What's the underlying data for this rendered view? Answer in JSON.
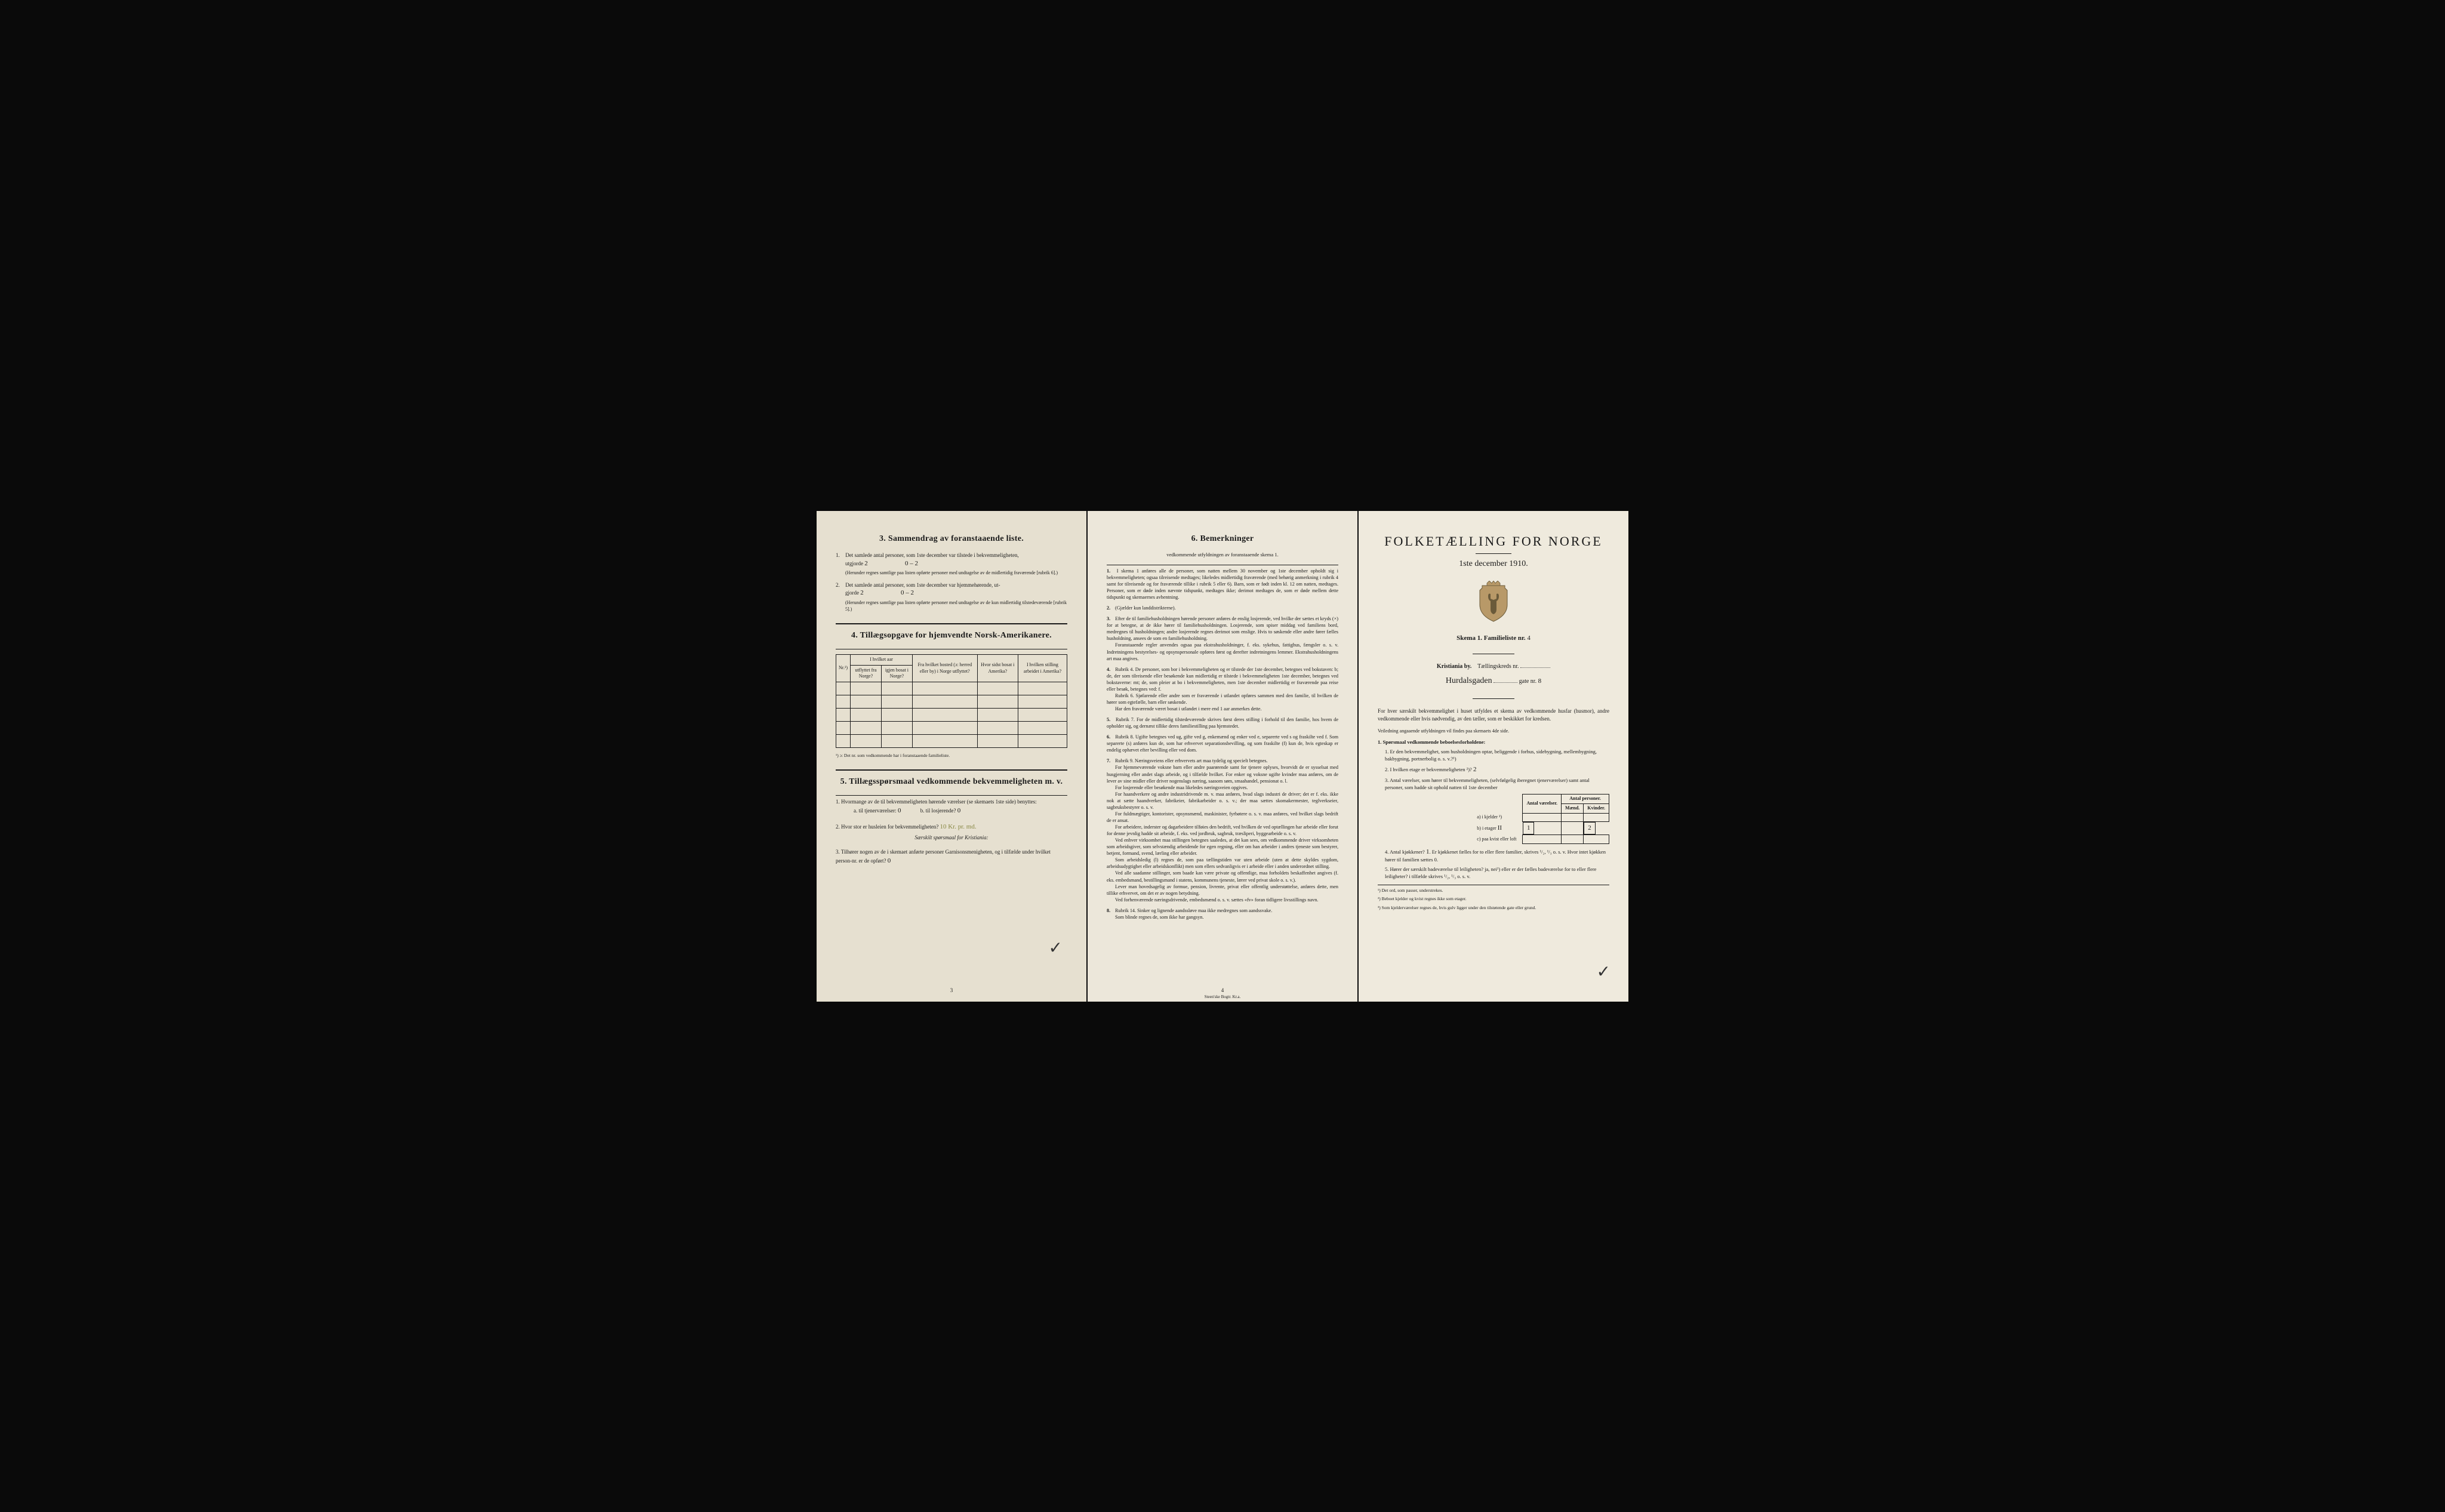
{
  "page_left": {
    "section3": {
      "title": "3.   Sammendrag av foranstaaende liste.",
      "items": [
        {
          "n": "1.",
          "text": "Det samlede antal personer, som 1ste december var tilstede i bekvemmeligheten,",
          "line2": "utgjorde",
          "fill1": "2",
          "fill2": "0 – 2",
          "note": "(Herunder regnes samtlige paa listen opførte personer med undtagelse av de midlertidig fraværende [rubrik 6].)"
        },
        {
          "n": "2.",
          "text": "Det samlede antal personer, som 1ste december var hjemmehørende, ut-",
          "line2": "gjorde",
          "fill1": "2",
          "fill2": "0 – 2",
          "note": "(Herunder regnes samtlige paa listen opførte personer med undtagelse av de kun midlertidig tilstedeværende [rubrik 5].)"
        }
      ]
    },
    "section4": {
      "title": "4.   Tillægsopgave for hjemvendte Norsk-Amerikanere.",
      "headers": {
        "nr": "Nr.¹)",
        "aar": "I hvilket aar",
        "utflyttet": "utflyttet fra Norge?",
        "igjen": "igjen bosat i Norge?",
        "bosted": "Fra hvilket bosted (ɔ: herred eller by) i Norge utflyttet?",
        "sidst": "Hvor sidst bosat i Amerika?",
        "stilling": "I hvilken stilling arbeidet i Amerika?"
      },
      "footnote": "¹) ɔ: Det nr. som vedkommende har i foranstaaende familieliste."
    },
    "section5": {
      "title": "5.   Tillægsspørsmaal vedkommende bekvemmeligheten m. v.",
      "q1": "1. Hvormange av de til bekvemmeligheten hørende værelser (se skemaets 1ste side) benyttes:",
      "q1a": "a. til tjenerværelser:",
      "q1a_fill": "0",
      "q1b": "b. til losjerende?",
      "q1b_fill": "0",
      "q2": "2. Hvor stor er husleien for bekvemmeligheten?",
      "q2_fill": "10 Kr. pr. md.",
      "q2_note": "Særskilt spørsmaal for Kristiania:",
      "q3": "3. Tilhører nogen av de i skemaet anførte personer Garnisonsmenigheten, og i tilfælde under hvilket person-nr. er de opført?",
      "q3_fill": "0"
    },
    "page_num": "3"
  },
  "page_mid": {
    "title": "6.   Bemerkninger",
    "subtitle": "vedkommende utfyldningen av foranstaaende skema 1.",
    "items": [
      "I skema 1 anføres alle de personer, som natten mellem 30 november og 1ste december opholdt sig i bekvemmeligheten; ogsaa tilreisende medtages; likeledes midlertidig fraværende (med behørig anmerkning i rubrik 4 samt for tilreisende og for fraværende tillike i rubrik 5 eller 6). Barn, som er født inden kl. 12 om natten, medtages. Personer, som er døde inden nævnte tidspunkt, medtages ikke; derimot medtages de, som er døde mellem dette tidspunkt og skemaernes avhentning.",
      "(Gjælder kun landdistrikterne).",
      "Efter de til familiehusholdningen hørende personer anføres de enslig losjerende, ved hvilke der sættes et kryds (×) for at betegne, at de ikke hører til familiehusholdningen. Losjerende, som spiser middag ved familiens bord, medregnes til husholdningen; andre losjerende regnes derimot som enslige. Hvis to søskende eller andre fører fælles husholdning, ansees de som en familiehusholdning.\n    Foranstaaende regler anvendes ogsaa paa ekstrahusholdninger, f. eks. sykehus, fattighus, fængsler o. s. v. Indretningens bestyrelses- og opsynspersonale opføres først og derefter indretningens lemmer. Ekstrahusholdningens art maa angives.",
      "Rubrik 4. De personer, som bor i bekvemmeligheten og er tilstede der 1ste december, betegnes ved bokstaven: b; de, der som tilreisende eller besøkende kun midlertidig er tilstede i bekvemmeligheten 1ste december, betegnes ved bokstaverne: mt; de, som pleier at bo i bekvemmeligheten, men 1ste december midlertidig er fraværende paa reise eller besøk, betegnes ved: f.\n    Rubrik 6. Sjøfarende eller andre som er fraværende i utlandet opføres sammen med den familie, til hvilken de hører som egtefælle, barn eller søskende.\n    Har den fraværende været bosat i utlandet i mere end 1 aar anmerkes dette.",
      "Rubrik 7. For de midlertidig tilstedeværende skrives først deres stilling i forhold til den familie, hos hvem de opholder sig, og dernæst tillike deres familiestilling paa hjemstedet.",
      "Rubrik 8. Ugifte betegnes ved ug, gifte ved g, enkemænd og enker ved e, separerte ved s og fraskilte ved f. Som separerte (s) anføres kun de, som har erhvervet separationsbevilling, og som fraskilte (f) kun de, hvis egteskap er endelig ophævet efter bevilling eller ved dom.",
      "Rubrik 9. Næringsveiens eller erhvervets art maa tydelig og specielt betegnes.\n    For hjemmeværende voksne barn eller andre paarørende samt for tjenere oplyses, hvorvidt de er sysselsat med husgjerning eller andet slags arbeide, og i tilfælde hvilket. For enker og voksne ugifte kvinder maa anføres, om de lever av sine midler eller driver nogenslags næring, saasom søm, smaahandel, pensionat o. l.\n    For losjerende eller besøkende maa likeledes næringsveien opgives.\n    For haandverkere og andre industridrivende m. v. maa anføres, hvad slags industri de driver; det er f. eks. ikke nok at sætte haandverker, fabrikeier, fabrikarbeider o. s. v.; der maa sættes skomakermester, teglverkseier, sagbruksbestyrer o. s. v.\n    For fuldmægtiger, kontorister, opsynsmænd, maskinister, fyrbøtere o. s. v. maa anføres, ved hvilket slags bedrift de er ansat.\n    For arbeidere, inderster og dagarbeidere tilføies den bedrift, ved hvilken de ved optællingen har arbeide eller forut for denne jevnlig hadde sit arbeide, f. eks. ved jordbruk, sagbruk, træsliperi, byggearbeide o. s. v.\n    Ved enhver virksomhet maa stillingen betegnes saaledes, at det kan sees, om vedkommende driver virksomheten som arbeidsgiver, som selvstændig arbeidende for egen regning, eller om han arbeider i andres tjeneste som bestyrer, betjent, formand, svend, lærling eller arbeider.\n    Som arbeidsledig (l) regnes de, som paa tællingstiden var uten arbeide (uten at dette skyldes sygdom, arbeidsudygtighet eller arbeidskonflikt) men som ellers sedvanligvis er i arbeide eller i anden underordnet stilling.\n    Ved alle saadanne stillinger, som baade kan være private og offentlige, maa forholdets beskaffenhet angives (f. eks. embedsmand, bestillingsmand i statens, kommunens tjeneste, lærer ved privat skole o. s. v.).\n    Lever man hovedsagelig av formue, pension, livrente, privat eller offentlig understøttelse, anføres dette, men tillike erhvervet, om det er av nogen betydning.\n    Ved forhenværende næringsdrivende, embedsmænd o. s. v. sættes «fv» foran tidligere livsstillings navn.",
      "Rubrik 14. Sinker og lignende aandssløve maa ikke medregnes som aandssvake.\n    Som blinde regnes de, som ikke har gangsyn."
    ],
    "page_num": "4",
    "printer": "Steen'ske Bogtr.  Kr.a."
  },
  "page_right": {
    "title": "FOLKETÆLLING FOR NORGE",
    "date": "1ste december 1910.",
    "skema": "Skema 1.    Familieliste nr.",
    "skema_fill": "4",
    "by": "Kristiania by.",
    "kreds": "Tællingskreds nr.",
    "street": "Hurdalsgaden",
    "street_label": "gate nr.",
    "street_nr": "8",
    "intro": "For hver særskilt bekvemmelighet i huset utfyldes et skema av vedkommende husfar (husmor), andre vedkommende eller hvis nødvendig, av den tæller, som er beskikket for kredsen.",
    "intro_note": "Veiledning angaaende utfyldningen vil findes paa skemaets 4de side.",
    "q_title": "1.  Spørsmaal vedkommende beboelsesforholdene:",
    "q1": "1. Er den bekvemmelighet, som husholdningen optar, beliggende i forhus, sidebygning, mellembygning, bakbygning, portnerbolig o. s. v.?¹)",
    "q2": "2. I hvilken etage er bekvemmeligheten ²)?",
    "q2_fill": "2",
    "q3": "3. Antal værelser, som hører til bekvemmeligheten, (selvfølgelig iberegnet tjenerværelser) samt antal personer, som hadde sit ophold natten til 1ste december",
    "table": {
      "h1": "Antal værelser.",
      "h2": "Antal personer.",
      "h2a": "Mænd.",
      "h2b": "Kvinder.",
      "rows": [
        {
          "label": "a) i kjelder ³)",
          "v": "",
          "m": "",
          "k": ""
        },
        {
          "label": "b) i etager",
          "etage": "II",
          "v": "1",
          "m": "",
          "k": "2"
        },
        {
          "label": "c) paa kvist eller loft",
          "v": "",
          "m": "",
          "k": ""
        }
      ]
    },
    "q4": "4. Antal kjøkkener?",
    "q4_fill": "1",
    "q4_text": "Er kjøkkenet fælles for to eller flere familier, skrives ¹/₂, ¹/₃ o. s. v. Hvor intet kjøkken hører til familien sættes 0.",
    "q5": "5. Hører der særskilt badeværelse til leiligheten? ja, nei¹) eller er der fælles badeværelse for to eller flere leiligheter? i tilfælde skrives ¹/₂, ¹/₃ o. s. v.",
    "footnotes": [
      "¹) Det ord, som passer, understrekes.",
      "²) Beboet kjelder og kvist regnes ikke som etager.",
      "³) Som kjelderværelser regnes de, hvis gulv ligger under den tilstøtende gate eller grund."
    ]
  }
}
